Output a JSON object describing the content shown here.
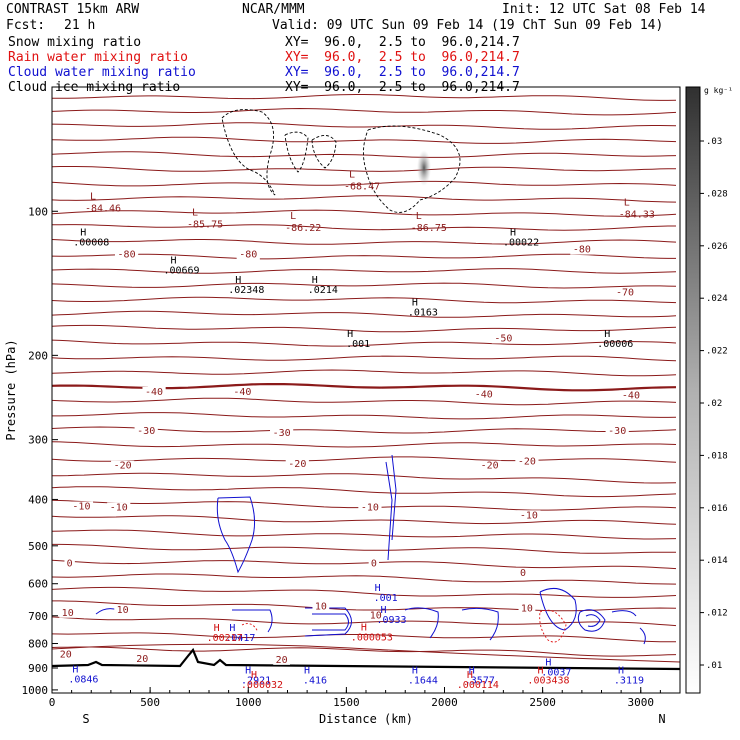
{
  "header": {
    "model": "CONTRAST 15km ARW",
    "center": "NCAR/MMM",
    "init": "Init: 12 UTC Sat 08 Feb 14",
    "fcst_label": "Fcst:",
    "fcst_value": "21 h",
    "valid": "Valid: 09 UTC Sun 09 Feb 14 (19 ChT Sun 09 Feb 14)"
  },
  "fields": [
    {
      "name": "Snow mixing ratio",
      "xy": "XY=  96.0,  2.5 to  96.0,214.7",
      "color": "#000000"
    },
    {
      "name": "Rain water mixing ratio",
      "xy": "XY=  96.0,  2.5 to  96.0,214.7",
      "color": "#e01010"
    },
    {
      "name": "Cloud water mixing ratio",
      "xy": "XY=  96.0,  2.5 to  96.0,214.7",
      "color": "#1010d0"
    },
    {
      "name": "Cloud ice mixing ratio",
      "xy": "XY=  96.0,  2.5 to  96.0,214.7",
      "color": "#000000"
    }
  ],
  "chart_data": {
    "type": "contour",
    "xlabel": "Distance (km)",
    "ylabel": "Pressure (hPa)",
    "x_ticks": [
      0,
      500,
      1000,
      1500,
      2000,
      2500,
      3000
    ],
    "y_ticks": [
      100,
      200,
      300,
      400,
      500,
      600,
      700,
      800,
      900,
      1000
    ],
    "xlim": [
      0,
      3200
    ],
    "ylim": [
      1015,
      55
    ],
    "y_scale": "log",
    "end_labels": {
      "left": "S",
      "right": "N"
    },
    "colorbar": {
      "unit": "g kg⁻¹",
      "ticks": [
        ".01",
        ".012",
        ".014",
        ".016",
        ".018",
        ".02",
        ".022",
        ".024",
        ".026",
        ".028",
        ".03"
      ]
    },
    "temperature_labels": [
      {
        "text": "-80",
        "x": 380,
        "p": 125
      },
      {
        "text": "-80",
        "x": 1000,
        "p": 125
      },
      {
        "text": "-80",
        "x": 2700,
        "p": 122
      },
      {
        "text": "-70",
        "x": 2920,
        "p": 150
      },
      {
        "text": "-50",
        "x": 2300,
        "p": 187
      },
      {
        "text": "-40",
        "x": 520,
        "p": 242
      },
      {
        "text": "-40",
        "x": 970,
        "p": 242
      },
      {
        "text": "-40",
        "x": 2200,
        "p": 245
      },
      {
        "text": "-40",
        "x": 2950,
        "p": 246
      },
      {
        "text": "-30",
        "x": 480,
        "p": 292
      },
      {
        "text": "-30",
        "x": 1170,
        "p": 295
      },
      {
        "text": "-30",
        "x": 2880,
        "p": 292
      },
      {
        "text": "-20",
        "x": 360,
        "p": 345
      },
      {
        "text": "-20",
        "x": 1250,
        "p": 342
      },
      {
        "text": "-20",
        "x": 2230,
        "p": 345
      },
      {
        "text": "-20",
        "x": 2420,
        "p": 338
      },
      {
        "text": "-10",
        "x": 150,
        "p": 420
      },
      {
        "text": "-10",
        "x": 340,
        "p": 422
      },
      {
        "text": "-10",
        "x": 1620,
        "p": 422
      },
      {
        "text": "-10",
        "x": 2430,
        "p": 438
      },
      {
        "text": "0",
        "x": 90,
        "p": 552
      },
      {
        "text": "0",
        "x": 1640,
        "p": 552
      },
      {
        "text": "0",
        "x": 2400,
        "p": 578
      },
      {
        "text": "10",
        "x": 80,
        "p": 700
      },
      {
        "text": "10",
        "x": 360,
        "p": 690
      },
      {
        "text": "10",
        "x": 1370,
        "p": 680
      },
      {
        "text": "10",
        "x": 1650,
        "p": 710
      },
      {
        "text": "10",
        "x": 2420,
        "p": 685
      },
      {
        "text": "20",
        "x": 70,
        "p": 855
      },
      {
        "text": "20",
        "x": 460,
        "p": 875
      },
      {
        "text": "20",
        "x": 1170,
        "p": 878
      }
    ],
    "lows": [
      {
        "value": "-84.46",
        "x": 260,
        "p": 100
      },
      {
        "value": "-85.75",
        "x": 780,
        "p": 108
      },
      {
        "value": "-86.22",
        "x": 1280,
        "p": 110
      },
      {
        "value": "-68.47",
        "x": 1580,
        "p": 90
      },
      {
        "value": "-86.75",
        "x": 1920,
        "p": 110
      },
      {
        "value": "-84.33",
        "x": 2980,
        "p": 103
      }
    ],
    "highs_snow_ice": [
      {
        "value": ".00008",
        "x": 200,
        "p": 118
      },
      {
        "value": ".00669",
        "x": 660,
        "p": 135
      },
      {
        "value": ".02348",
        "x": 990,
        "p": 148
      },
      {
        "value": ".0214",
        "x": 1380,
        "p": 148
      },
      {
        "value": ".001",
        "x": 1560,
        "p": 192
      },
      {
        "value": ".0163",
        "x": 1890,
        "p": 165
      },
      {
        "value": ".00022",
        "x": 2390,
        "p": 118
      },
      {
        "value": ".00006",
        "x": 2870,
        "p": 192
      }
    ],
    "highs_cloud_water": [
      {
        "value": ".001",
        "x": 1700,
        "p": 652
      },
      {
        "value": ".0933",
        "x": 1730,
        "p": 725
      },
      {
        "value": ".0417",
        "x": 960,
        "p": 790
      },
      {
        "value": ".0846",
        "x": 160,
        "p": 965
      },
      {
        "value": ".2921",
        "x": 1040,
        "p": 970
      },
      {
        "value": ".416",
        "x": 1340,
        "p": 970
      },
      {
        "value": ".1644",
        "x": 1890,
        "p": 970
      },
      {
        "value": ".3577",
        "x": 2180,
        "p": 970
      },
      {
        "value": ".0037",
        "x": 2570,
        "p": 932
      },
      {
        "value": ".3119",
        "x": 2940,
        "p": 970
      }
    ],
    "highs_rain": [
      {
        "value": ".00217",
        "x": 880,
        "p": 790
      },
      {
        "value": ".000053",
        "x": 1630,
        "p": 788
      },
      {
        "value": ".000032",
        "x": 1070,
        "p": 990
      },
      {
        "value": ".000114",
        "x": 2170,
        "p": 990
      },
      {
        "value": ".003438",
        "x": 2530,
        "p": 970
      }
    ]
  }
}
